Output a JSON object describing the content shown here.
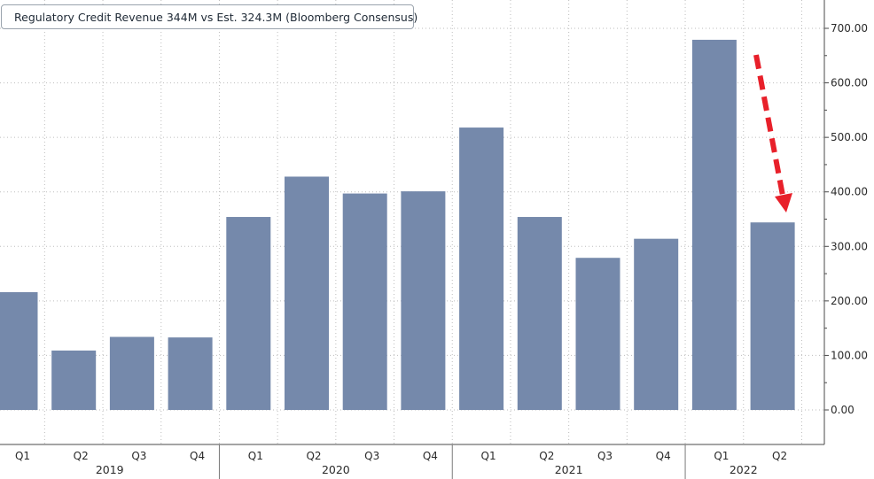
{
  "chart_data": {
    "type": "bar",
    "legend": "Regulatory Credit Revenue 344M vs Est. 324.3M (Bloomberg Consensus)",
    "legend_position": "top-left",
    "categories": [
      "Q1",
      "Q2",
      "Q3",
      "Q4",
      "Q1",
      "Q2",
      "Q3",
      "Q4",
      "Q1",
      "Q2",
      "Q3",
      "Q4",
      "Q1",
      "Q2"
    ],
    "years": [
      {
        "label": "2019",
        "start": 0,
        "end": 3
      },
      {
        "label": "2020",
        "start": 4,
        "end": 7
      },
      {
        "label": "2021",
        "start": 8,
        "end": 11
      },
      {
        "label": "2022",
        "start": 12,
        "end": 13
      }
    ],
    "values": [
      216,
      109,
      134,
      133,
      354,
      428,
      397,
      401,
      518,
      354,
      279,
      314,
      679,
      344
    ],
    "yticks": [
      "0.00",
      "100.00",
      "200.00",
      "300.00",
      "400.00",
      "500.00",
      "600.00",
      "700.00"
    ],
    "ylim": [
      -60,
      755
    ],
    "grid": true,
    "yaxis_side": "right",
    "bar_color": "#7589ab",
    "annotation_color": "#e8202a"
  }
}
